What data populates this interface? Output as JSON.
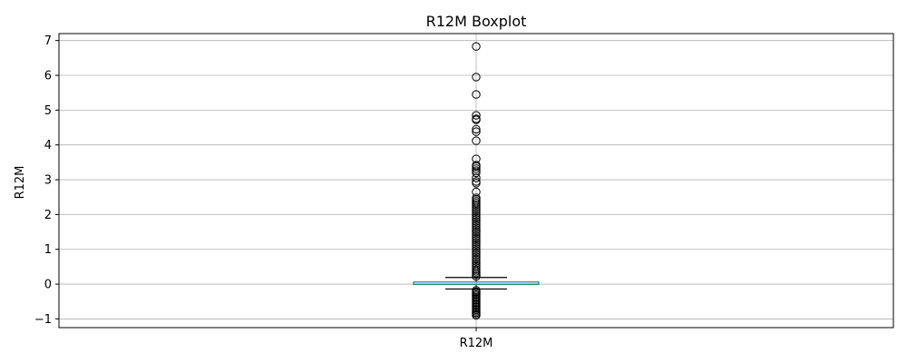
{
  "chart_data": {
    "type": "boxplot",
    "title": "R12M Boxplot",
    "xlabel": "",
    "ylabel": "R12M",
    "categories": [
      "R12M"
    ],
    "ylim": [
      -1.25,
      7.2
    ],
    "yticks": [
      -1,
      0,
      1,
      2,
      3,
      4,
      5,
      6,
      7
    ],
    "ytick_labels": [
      "−1",
      "0",
      "1",
      "2",
      "3",
      "4",
      "5",
      "6",
      "7"
    ],
    "grid": true,
    "box": {
      "q1": -0.01,
      "median": 0.0,
      "q3": 0.06,
      "whisker_low": -0.14,
      "whisker_high": 0.19
    },
    "outliers_high": [
      6.83,
      5.95,
      5.45,
      4.85,
      4.75,
      4.72,
      4.45,
      4.38,
      4.12,
      3.6,
      3.42,
      3.38,
      3.32,
      3.26,
      3.2,
      3.05,
      2.95,
      2.9,
      2.65,
      2.48,
      2.43,
      2.38,
      2.33,
      2.28,
      2.22,
      2.16,
      2.1,
      2.04,
      1.98,
      1.92,
      1.86,
      1.8,
      1.74,
      1.68,
      1.62,
      1.56,
      1.5,
      1.44,
      1.38,
      1.32,
      1.26,
      1.2,
      1.14,
      1.08,
      1.02,
      0.96,
      0.9,
      0.84,
      0.78,
      0.72,
      0.66,
      0.6,
      0.54,
      0.48,
      0.42,
      0.37,
      0.32,
      0.27,
      0.22
    ],
    "outliers_low": [
      -0.18,
      -0.22,
      -0.26,
      -0.3,
      -0.34,
      -0.38,
      -0.42,
      -0.46,
      -0.5,
      -0.54,
      -0.58,
      -0.62,
      -0.66,
      -0.7,
      -0.74,
      -0.78,
      -0.82,
      -0.86,
      -0.9
    ],
    "colors": {
      "box": "#1f77b4",
      "median": "#2ca02c",
      "whisker": "#000000",
      "grid": "#b0b0b0"
    }
  }
}
